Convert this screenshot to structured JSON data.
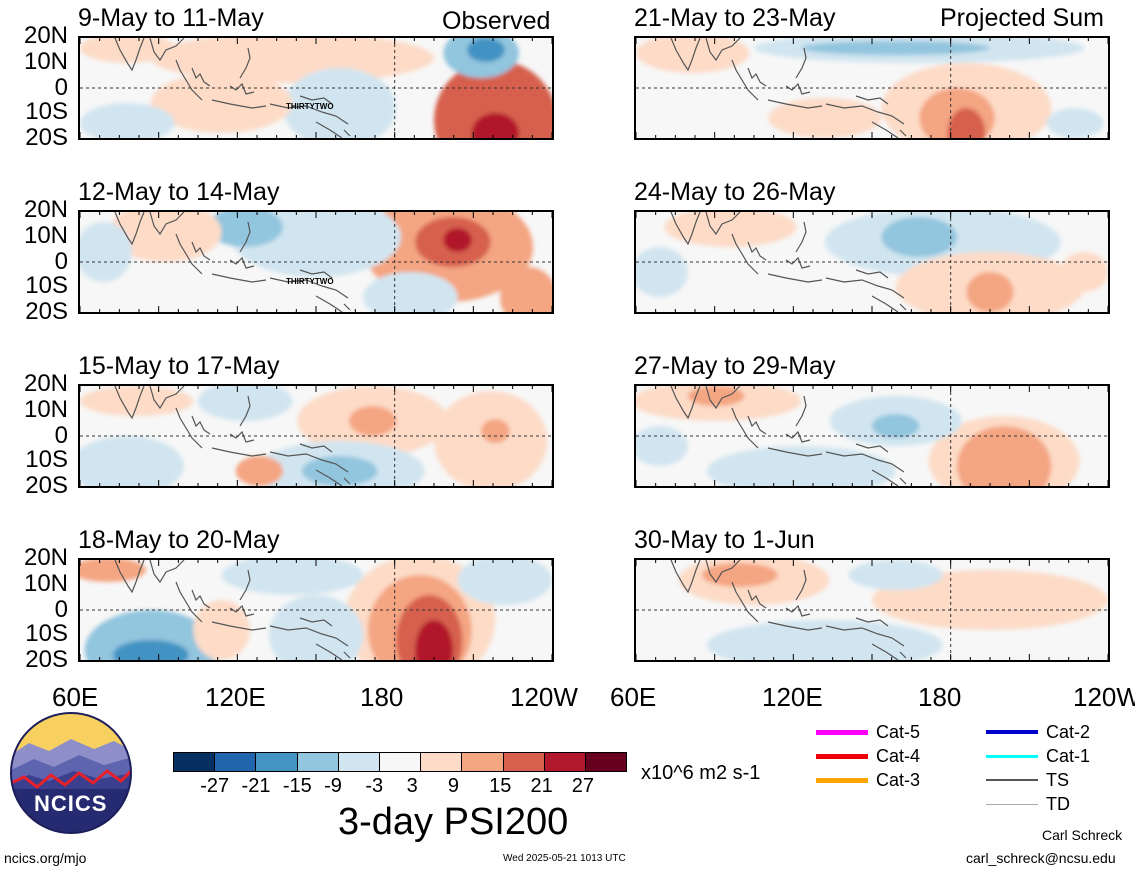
{
  "chart_data": {
    "type": "heatmap",
    "title": "3-day PSI200",
    "units": "x10^6 m2 s-1",
    "colorbar": {
      "ticks": [
        "-27",
        "-21",
        "-15",
        "-9",
        "-3",
        "3",
        "9",
        "15",
        "21",
        "27"
      ],
      "colors": [
        "#053061",
        "#2166ac",
        "#4393c3",
        "#92c5de",
        "#d1e5f0",
        "#f7f7f7",
        "#fddbc7",
        "#f4a582",
        "#d6604d",
        "#b2182b",
        "#67001f"
      ]
    },
    "y_ticks": [
      "20N",
      "10N",
      "0",
      "10S",
      "20S"
    ],
    "x_ticks": [
      "60E",
      "120E",
      "180",
      "120W"
    ],
    "x_ticks_right": [
      "60E",
      "120E",
      "180",
      "120W"
    ],
    "observed_tag": "Observed",
    "projected_tag": "Projected Sum",
    "observed": [
      {
        "label": "9-May to 11-May",
        "storm": "THIRTYTWO",
        "blobs": [
          {
            "x": 0.88,
            "y": 0.82,
            "rx": 0.13,
            "ry": 0.6,
            "v": 15
          },
          {
            "x": 0.88,
            "y": 0.95,
            "rx": 0.05,
            "ry": 0.2,
            "v": 21
          },
          {
            "x": 0.85,
            "y": 0.15,
            "rx": 0.08,
            "ry": 0.25,
            "v": -9
          },
          {
            "x": 0.86,
            "y": 0.12,
            "rx": 0.04,
            "ry": 0.12,
            "v": -15
          },
          {
            "x": 0.45,
            "y": 0.2,
            "rx": 0.3,
            "ry": 0.25,
            "v": 3
          },
          {
            "x": 0.55,
            "y": 0.7,
            "rx": 0.12,
            "ry": 0.4,
            "v": -3
          },
          {
            "x": 0.1,
            "y": 0.1,
            "rx": 0.1,
            "ry": 0.15,
            "v": 3
          },
          {
            "x": 0.3,
            "y": 0.65,
            "rx": 0.15,
            "ry": 0.3,
            "v": 3
          },
          {
            "x": 0.1,
            "y": 0.85,
            "rx": 0.1,
            "ry": 0.2,
            "v": -3
          }
        ]
      },
      {
        "label": "12-May to 14-May",
        "storm": "THIRTYTWO",
        "blobs": [
          {
            "x": 0.78,
            "y": 0.35,
            "rx": 0.18,
            "ry": 0.55,
            "v": 9
          },
          {
            "x": 0.79,
            "y": 0.3,
            "rx": 0.08,
            "ry": 0.25,
            "v": 15
          },
          {
            "x": 0.8,
            "y": 0.28,
            "rx": 0.03,
            "ry": 0.12,
            "v": 21
          },
          {
            "x": 0.95,
            "y": 0.85,
            "rx": 0.06,
            "ry": 0.3,
            "v": 9
          },
          {
            "x": 0.5,
            "y": 0.25,
            "rx": 0.18,
            "ry": 0.4,
            "v": -3
          },
          {
            "x": 0.35,
            "y": 0.15,
            "rx": 0.08,
            "ry": 0.2,
            "v": -9
          },
          {
            "x": 0.18,
            "y": 0.2,
            "rx": 0.12,
            "ry": 0.3,
            "v": 3
          },
          {
            "x": 0.7,
            "y": 0.85,
            "rx": 0.1,
            "ry": 0.25,
            "v": -3
          },
          {
            "x": 0.05,
            "y": 0.4,
            "rx": 0.06,
            "ry": 0.3,
            "v": -3
          }
        ]
      },
      {
        "label": "15-May to 17-May",
        "blobs": [
          {
            "x": 0.62,
            "y": 0.35,
            "rx": 0.16,
            "ry": 0.35,
            "v": 3
          },
          {
            "x": 0.62,
            "y": 0.35,
            "rx": 0.05,
            "ry": 0.15,
            "v": 9
          },
          {
            "x": 0.87,
            "y": 0.55,
            "rx": 0.12,
            "ry": 0.5,
            "v": 3
          },
          {
            "x": 0.88,
            "y": 0.45,
            "rx": 0.03,
            "ry": 0.12,
            "v": 9
          },
          {
            "x": 0.55,
            "y": 0.85,
            "rx": 0.18,
            "ry": 0.3,
            "v": -3
          },
          {
            "x": 0.55,
            "y": 0.85,
            "rx": 0.08,
            "ry": 0.15,
            "v": -9
          },
          {
            "x": 0.38,
            "y": 0.85,
            "rx": 0.05,
            "ry": 0.15,
            "v": 9
          },
          {
            "x": 0.12,
            "y": 0.15,
            "rx": 0.12,
            "ry": 0.15,
            "v": 3
          },
          {
            "x": 0.1,
            "y": 0.8,
            "rx": 0.12,
            "ry": 0.3,
            "v": -3
          },
          {
            "x": 0.35,
            "y": 0.15,
            "rx": 0.1,
            "ry": 0.2,
            "v": -3
          }
        ]
      },
      {
        "label": "18-May to 20-May",
        "blobs": [
          {
            "x": 0.72,
            "y": 0.6,
            "rx": 0.16,
            "ry": 0.65,
            "v": 3
          },
          {
            "x": 0.72,
            "y": 0.7,
            "rx": 0.11,
            "ry": 0.55,
            "v": 9
          },
          {
            "x": 0.74,
            "y": 0.8,
            "rx": 0.07,
            "ry": 0.45,
            "v": 15
          },
          {
            "x": 0.75,
            "y": 0.9,
            "rx": 0.04,
            "ry": 0.3,
            "v": 21
          },
          {
            "x": 0.15,
            "y": 0.9,
            "rx": 0.14,
            "ry": 0.4,
            "v": -9
          },
          {
            "x": 0.15,
            "y": 0.95,
            "rx": 0.08,
            "ry": 0.15,
            "v": -15
          },
          {
            "x": 0.5,
            "y": 0.75,
            "rx": 0.1,
            "ry": 0.4,
            "v": -3
          },
          {
            "x": 0.3,
            "y": 0.7,
            "rx": 0.06,
            "ry": 0.3,
            "v": 3
          },
          {
            "x": 0.06,
            "y": 0.1,
            "rx": 0.08,
            "ry": 0.12,
            "v": 9
          },
          {
            "x": 0.45,
            "y": 0.15,
            "rx": 0.15,
            "ry": 0.2,
            "v": -3
          },
          {
            "x": 0.9,
            "y": 0.2,
            "rx": 0.1,
            "ry": 0.25,
            "v": -3
          }
        ]
      }
    ],
    "projected": [
      {
        "label": "21-May to 23-May",
        "blobs": [
          {
            "x": 0.7,
            "y": 0.7,
            "rx": 0.18,
            "ry": 0.45,
            "v": 3
          },
          {
            "x": 0.68,
            "y": 0.8,
            "rx": 0.08,
            "ry": 0.3,
            "v": 9
          },
          {
            "x": 0.7,
            "y": 0.95,
            "rx": 0.04,
            "ry": 0.25,
            "v": 15
          },
          {
            "x": 0.6,
            "y": 0.1,
            "rx": 0.35,
            "ry": 0.15,
            "v": -3
          },
          {
            "x": 0.55,
            "y": 0.1,
            "rx": 0.2,
            "ry": 0.07,
            "v": -9
          },
          {
            "x": 0.12,
            "y": 0.15,
            "rx": 0.12,
            "ry": 0.2,
            "v": 3
          },
          {
            "x": 0.4,
            "y": 0.8,
            "rx": 0.12,
            "ry": 0.2,
            "v": 3
          },
          {
            "x": 0.93,
            "y": 0.85,
            "rx": 0.06,
            "ry": 0.15,
            "v": -3
          }
        ]
      },
      {
        "label": "24-May to 26-May",
        "blobs": [
          {
            "x": 0.65,
            "y": 0.3,
            "rx": 0.25,
            "ry": 0.35,
            "v": -3
          },
          {
            "x": 0.6,
            "y": 0.25,
            "rx": 0.08,
            "ry": 0.2,
            "v": -9
          },
          {
            "x": 0.75,
            "y": 0.75,
            "rx": 0.2,
            "ry": 0.35,
            "v": 3
          },
          {
            "x": 0.75,
            "y": 0.8,
            "rx": 0.05,
            "ry": 0.2,
            "v": 9
          },
          {
            "x": 0.2,
            "y": 0.15,
            "rx": 0.14,
            "ry": 0.2,
            "v": 3
          },
          {
            "x": 0.95,
            "y": 0.6,
            "rx": 0.05,
            "ry": 0.2,
            "v": 3
          },
          {
            "x": 0.05,
            "y": 0.6,
            "rx": 0.06,
            "ry": 0.25,
            "v": -3
          }
        ]
      },
      {
        "label": "27-May to 29-May",
        "blobs": [
          {
            "x": 0.78,
            "y": 0.75,
            "rx": 0.16,
            "ry": 0.45,
            "v": 3
          },
          {
            "x": 0.78,
            "y": 0.8,
            "rx": 0.1,
            "ry": 0.4,
            "v": 9
          },
          {
            "x": 0.17,
            "y": 0.15,
            "rx": 0.18,
            "ry": 0.2,
            "v": 3
          },
          {
            "x": 0.17,
            "y": 0.1,
            "rx": 0.06,
            "ry": 0.1,
            "v": 9
          },
          {
            "x": 0.55,
            "y": 0.35,
            "rx": 0.14,
            "ry": 0.25,
            "v": -3
          },
          {
            "x": 0.55,
            "y": 0.4,
            "rx": 0.05,
            "ry": 0.12,
            "v": -9
          },
          {
            "x": 0.35,
            "y": 0.85,
            "rx": 0.2,
            "ry": 0.25,
            "v": -3
          },
          {
            "x": 0.05,
            "y": 0.6,
            "rx": 0.06,
            "ry": 0.2,
            "v": -3
          }
        ]
      },
      {
        "label": "30-May to 1-Jun",
        "blobs": [
          {
            "x": 0.25,
            "y": 0.2,
            "rx": 0.16,
            "ry": 0.25,
            "v": 3
          },
          {
            "x": 0.22,
            "y": 0.15,
            "rx": 0.08,
            "ry": 0.12,
            "v": 9
          },
          {
            "x": 0.75,
            "y": 0.4,
            "rx": 0.25,
            "ry": 0.3,
            "v": 3
          },
          {
            "x": 0.4,
            "y": 0.85,
            "rx": 0.25,
            "ry": 0.25,
            "v": -3
          },
          {
            "x": 0.55,
            "y": 0.15,
            "rx": 0.1,
            "ry": 0.15,
            "v": -3
          }
        ]
      }
    ]
  },
  "legend": [
    {
      "label": "Cat-5",
      "color": "#ff00ff",
      "width": 5
    },
    {
      "label": "Cat-4",
      "color": "#ee0000",
      "width": 5
    },
    {
      "label": "Cat-3",
      "color": "#ffa500",
      "width": 5
    },
    {
      "label": "Cat-2",
      "color": "#0000cc",
      "width": 4
    },
    {
      "label": "Cat-1",
      "color": "#00ffff",
      "width": 3
    },
    {
      "label": "TS",
      "color": "#555555",
      "width": 2
    },
    {
      "label": "TD",
      "color": "#aaaaaa",
      "width": 1
    }
  ],
  "logo_text": "NCICS",
  "footer": {
    "url": "ncics.org/mjo",
    "timestamp": "Wed 2025-05-21 1013 UTC",
    "author": "Carl Schreck",
    "email": "carl_schreck@ncsu.edu"
  }
}
